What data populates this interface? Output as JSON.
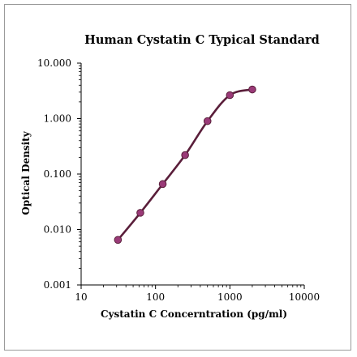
{
  "chart_data": {
    "type": "line",
    "title": "Human Cystatin C Typical Standard",
    "xlabel": "Cystatin C Concerntration (pg/ml)",
    "ylabel": "Optical Density",
    "x_scale": "log",
    "y_scale": "log",
    "xlim": [
      10,
      10000
    ],
    "ylim": [
      0.001,
      10
    ],
    "x_ticks": [
      "10",
      "100",
      "1000",
      "10000"
    ],
    "y_ticks": [
      "0.001",
      "0.010",
      "0.100",
      "1.000",
      "10.000"
    ],
    "grid": false,
    "series": [
      {
        "x": [
          31.25,
          62.5,
          125,
          250,
          500,
          1000,
          2000
        ],
        "y": [
          0.0065,
          0.02,
          0.066,
          0.22,
          0.9,
          2.65,
          3.35
        ],
        "color": "#5a1e3a",
        "marker_color": "#9a3a78"
      }
    ]
  }
}
